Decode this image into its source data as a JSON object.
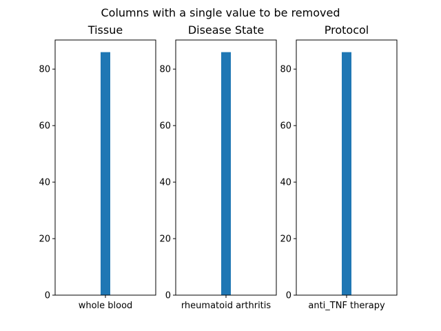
{
  "figure": {
    "suptitle": "Columns with a single value to be removed"
  },
  "chart_data": [
    {
      "type": "bar",
      "title": "Tissue",
      "categories": [
        "whole blood"
      ],
      "values": [
        86
      ],
      "ylim": [
        0,
        90.3
      ],
      "yticks": [
        0,
        20,
        40,
        60,
        80
      ],
      "xlabel": "",
      "ylabel": "",
      "grid": false,
      "color": "#1f77b4"
    },
    {
      "type": "bar",
      "title": "Disease State",
      "categories": [
        "rheumatoid arthritis"
      ],
      "values": [
        86
      ],
      "ylim": [
        0,
        90.3
      ],
      "yticks": [
        0,
        20,
        40,
        60,
        80
      ],
      "xlabel": "",
      "ylabel": "",
      "grid": false,
      "color": "#1f77b4"
    },
    {
      "type": "bar",
      "title": "Protocol",
      "categories": [
        "anti_TNF therapy"
      ],
      "values": [
        86
      ],
      "ylim": [
        0,
        90.3
      ],
      "yticks": [
        0,
        20,
        40,
        60,
        80
      ],
      "xlabel": "",
      "ylabel": "",
      "grid": false,
      "color": "#1f77b4"
    }
  ]
}
